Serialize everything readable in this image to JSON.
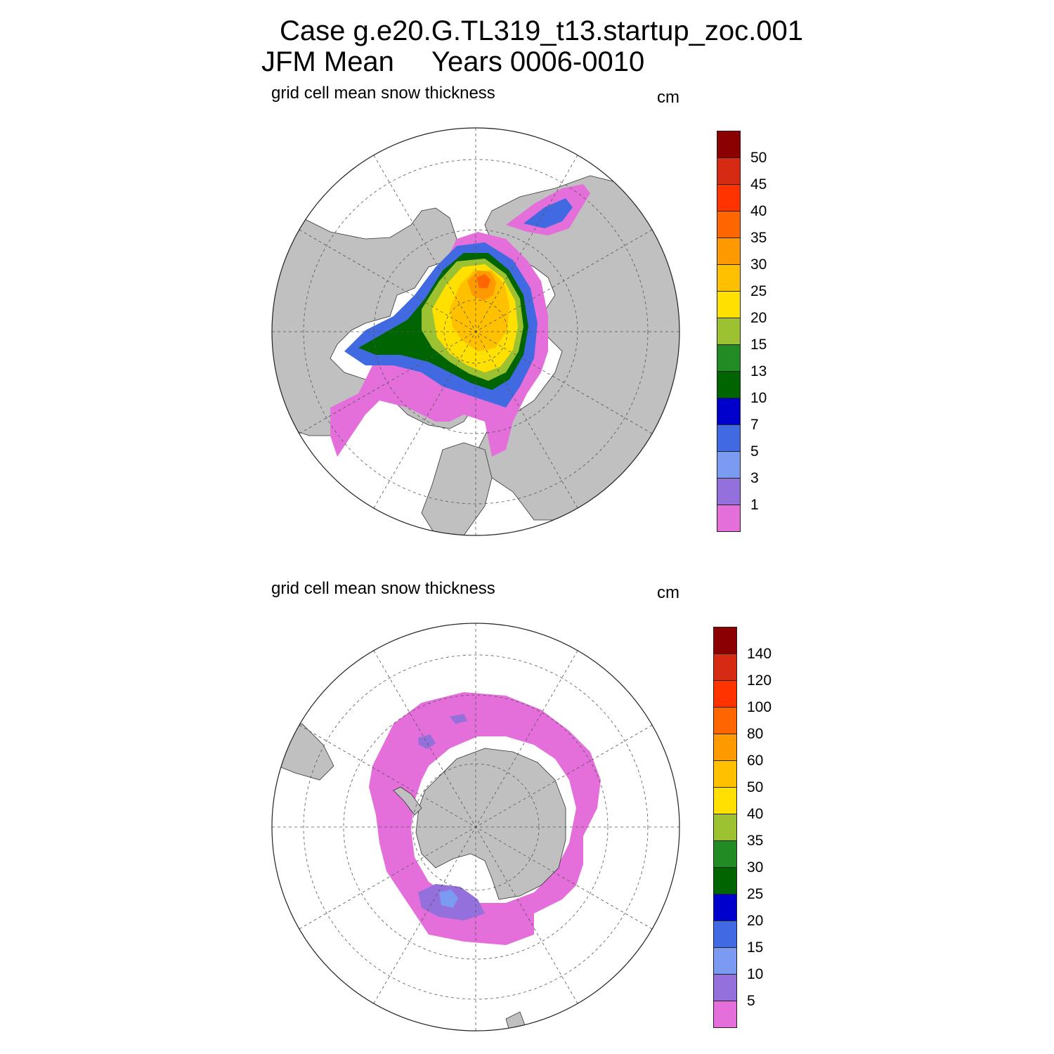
{
  "header": {
    "case_line": "Case g.e20.G.TL319_t13.startup_zoc.001",
    "period_label": "JFM Mean",
    "years_label": "Years 0006-0010"
  },
  "panels": [
    {
      "id": "north",
      "variable_label": "grid cell mean snow thickness",
      "units_label": "cm",
      "colorbar": {
        "labels": [
          "50",
          "45",
          "40",
          "35",
          "30",
          "25",
          "20",
          "15",
          "13",
          "10",
          "7",
          "5",
          "3",
          "1"
        ],
        "colors": [
          "#8b0000",
          "#d62a13",
          "#ff3300",
          "#ff6600",
          "#ff9900",
          "#ffc000",
          "#ffe000",
          "#9dc231",
          "#238b23",
          "#006400",
          "#0000cd",
          "#4169e1",
          "#7b9af2",
          "#9370db",
          "#e46fdb"
        ]
      }
    },
    {
      "id": "south",
      "variable_label": "grid cell mean snow thickness",
      "units_label": "cm",
      "colorbar": {
        "labels": [
          "140",
          "120",
          "100",
          "80",
          "60",
          "50",
          "40",
          "35",
          "30",
          "25",
          "20",
          "15",
          "10",
          "5"
        ],
        "colors": [
          "#8b0000",
          "#d62a13",
          "#ff3300",
          "#ff6600",
          "#ff9900",
          "#ffc000",
          "#ffe000",
          "#9dc231",
          "#238b23",
          "#006400",
          "#0000cd",
          "#4169e1",
          "#7b9af2",
          "#9370db",
          "#e46fdb"
        ]
      }
    }
  ],
  "map_colors": {
    "land": "#c0c0c0",
    "ocean": "#ffffff",
    "coast": "#333333",
    "grid": "#555555"
  }
}
